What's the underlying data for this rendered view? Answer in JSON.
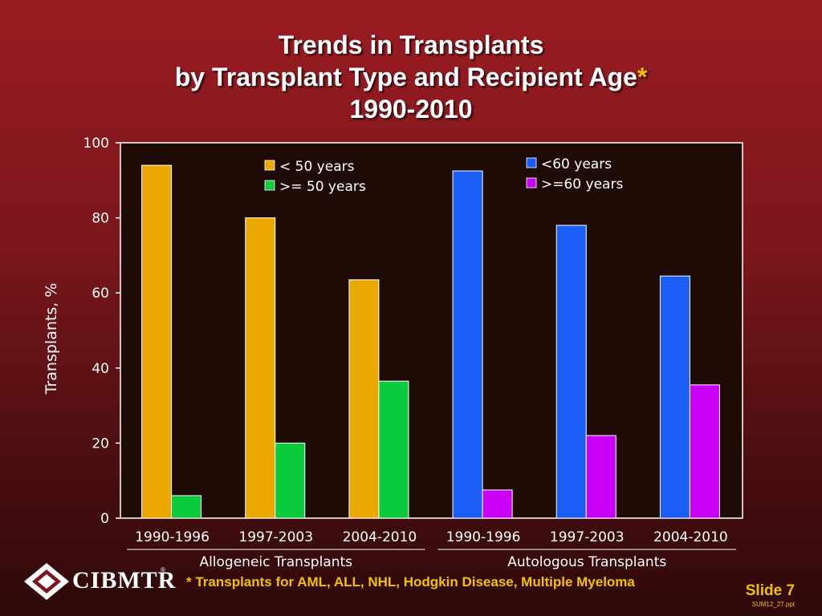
{
  "title": {
    "line1": "Trends in Transplants",
    "line2": "by Transplant Type and Recipient Age",
    "star": "*",
    "line3": "1990-2010"
  },
  "chart_data": {
    "type": "bar",
    "ylabel": "Transplants, %",
    "ylim": [
      0,
      100
    ],
    "yticks": [
      0,
      20,
      40,
      60,
      80,
      100
    ],
    "groups": [
      {
        "label": "Allogeneic Transplants",
        "categories": [
          "1990-1996",
          "1997-2003",
          "2004-2010"
        ],
        "series": [
          {
            "name": "< 50 years",
            "color": "#eaa800",
            "values": [
              94,
              80,
              63.5
            ]
          },
          {
            "name": ">= 50 years",
            "color": "#0acb3c",
            "values": [
              6,
              20,
              36.5
            ]
          }
        ]
      },
      {
        "label": "Autologous Transplants",
        "categories": [
          "1990-1996",
          "1997-2003",
          "2004-2010"
        ],
        "series": [
          {
            "name": "<60 years",
            "color": "#1a5ef5",
            "values": [
              92.5,
              78,
              64.5
            ]
          },
          {
            "name": ">=60 years",
            "color": "#c800f5",
            "values": [
              7.5,
              22,
              35.5
            ]
          }
        ]
      }
    ],
    "plot_background": "#1f0b05"
  },
  "footnote": "* Transplants for AML, ALL, NHL, Hodgkin Disease, Multiple Myeloma",
  "slide_label": "Slide 7",
  "file_id": "SUM12_27.ppt",
  "logo": {
    "text": "CIBMTR",
    "reg": "®"
  }
}
